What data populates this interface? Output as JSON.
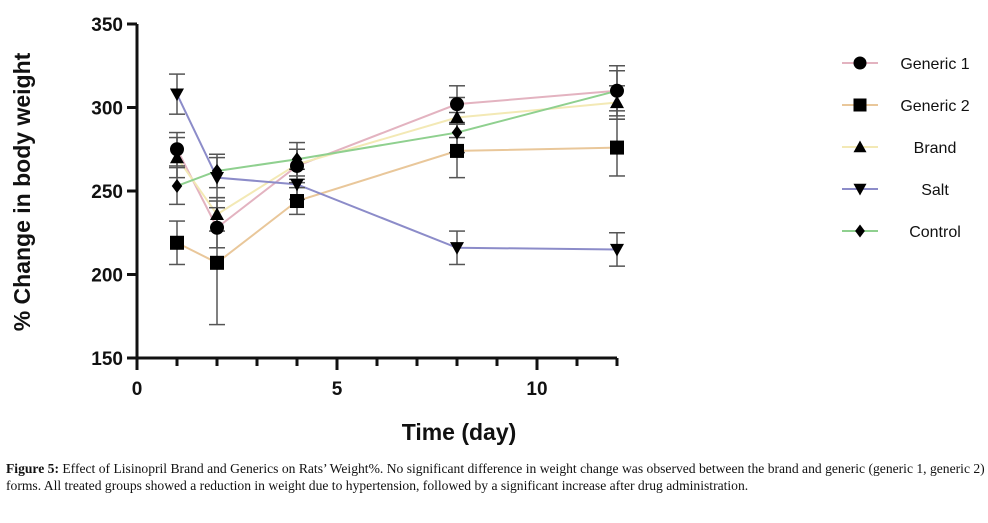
{
  "chart_data": {
    "type": "line",
    "title": "",
    "xlabel": "Time (day)",
    "ylabel": "% Change in body weight",
    "xlim": [
      0,
      12
    ],
    "ylim": [
      150,
      350
    ],
    "xticks": [
      0,
      5,
      10
    ],
    "xticks_minor_step": 1,
    "yticks": [
      150,
      200,
      250,
      300,
      350
    ],
    "grid": false,
    "legend_position": "right",
    "x": [
      1,
      2,
      4,
      8,
      12
    ],
    "series": [
      {
        "name": "Generic 1",
        "marker": "circle",
        "color": "#e3b3c0",
        "values": [
          275,
          228,
          265,
          302,
          310
        ],
        "error": [
          10,
          12,
          10,
          11,
          15
        ]
      },
      {
        "name": "Generic 2",
        "marker": "square",
        "color": "#e9c79a",
        "values": [
          219,
          207,
          244,
          274,
          276
        ],
        "error": [
          13,
          37,
          8,
          16,
          17
        ]
      },
      {
        "name": "Brand",
        "marker": "triangle-up",
        "color": "#f3e9b5",
        "values": [
          270,
          236,
          266,
          294,
          303
        ],
        "error": [
          12,
          10,
          9,
          12,
          10
        ]
      },
      {
        "name": "Salt",
        "marker": "triangle-down",
        "color": "#8c8cc9",
        "values": [
          308,
          258,
          254,
          216,
          215
        ],
        "error": [
          12,
          12,
          9,
          10,
          10
        ]
      },
      {
        "name": "Control",
        "marker": "diamond",
        "color": "#8fd08f",
        "values": [
          253,
          262,
          269,
          285,
          310
        ],
        "error": [
          11,
          10,
          10,
          12,
          12
        ]
      }
    ]
  },
  "caption": {
    "label": "Figure 5:",
    "text": " Effect of Lisinopril Brand and Generics on Rats’ Weight%. No significant difference in weight change was observed between the brand and generic (generic 1, generic 2) forms. All treated groups showed a reduction in weight due to hypertension, followed by a significant increase after drug administration."
  }
}
